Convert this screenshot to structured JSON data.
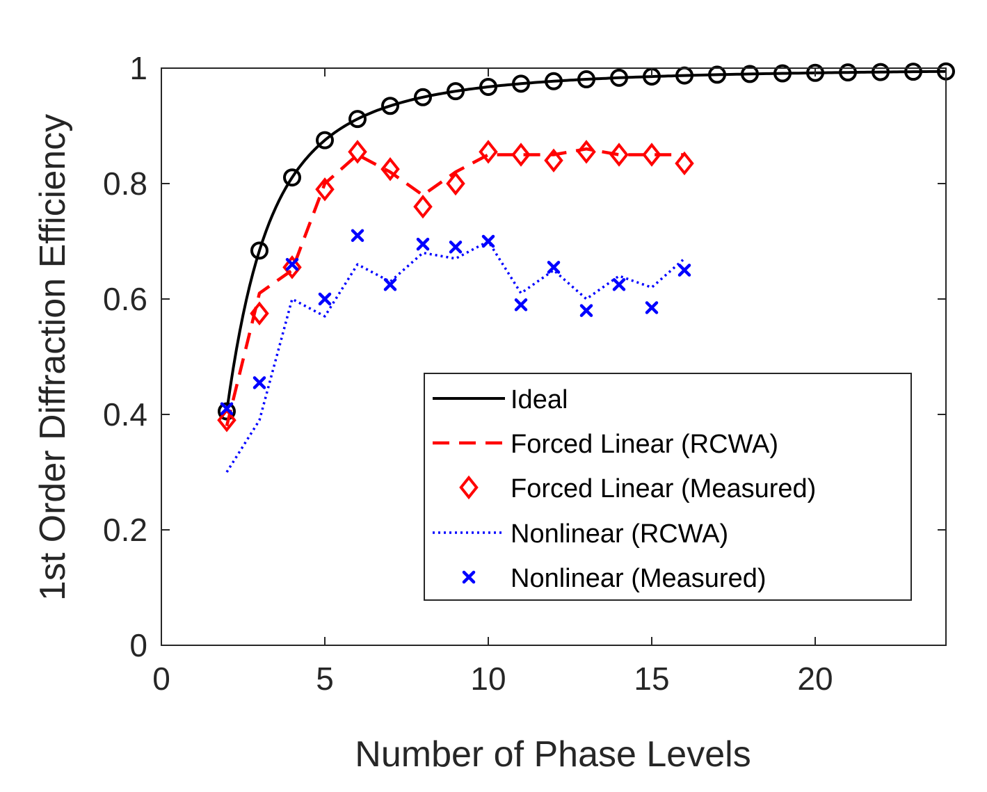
{
  "chart_data": {
    "type": "line",
    "title": "",
    "xlabel": "Number of Phase Levels",
    "ylabel": "1st Order Diffraction Efficiency",
    "xlim": [
      0,
      24
    ],
    "ylim": [
      0,
      1
    ],
    "xticks": [
      0,
      5,
      10,
      15,
      20
    ],
    "yticks": [
      0,
      0.2,
      0.4,
      0.6,
      0.8,
      1
    ],
    "ytick_labels": [
      "0",
      "0.2",
      "0.4",
      "0.6",
      "0.8",
      "1"
    ],
    "legend_position": "lower-right",
    "series": [
      {
        "name": "Ideal",
        "style": "solid-line-with-circles",
        "color": "#000000",
        "x": [
          2,
          3,
          4,
          5,
          6,
          7,
          8,
          9,
          10,
          11,
          12,
          13,
          14,
          15,
          16,
          17,
          18,
          19,
          20,
          21,
          22,
          23,
          24
        ],
        "y": [
          0.405,
          0.684,
          0.811,
          0.875,
          0.912,
          0.933,
          0.95,
          0.96,
          0.968,
          0.973,
          0.977,
          0.981,
          0.983,
          0.985,
          0.987,
          0.989,
          0.99,
          0.991,
          0.992,
          0.993,
          0.994,
          0.994,
          0.994
        ]
      },
      {
        "name": "Forced Linear (RCWA)",
        "style": "dashed",
        "color": "#ff0000",
        "x": [
          2,
          3,
          4,
          5,
          6,
          7,
          8,
          9,
          10,
          11,
          12,
          13,
          14,
          15,
          16
        ],
        "y": [
          0.38,
          0.61,
          0.65,
          0.8,
          0.85,
          0.82,
          0.78,
          0.82,
          0.85,
          0.85,
          0.85,
          0.86,
          0.85,
          0.85,
          0.85
        ]
      },
      {
        "name": "Forced Linear (Measured)",
        "style": "diamond-markers",
        "color": "#ff0000",
        "x": [
          2,
          3,
          4,
          5,
          6,
          7,
          8,
          9,
          10,
          11,
          12,
          13,
          14,
          15,
          16
        ],
        "y": [
          0.39,
          0.575,
          0.655,
          0.79,
          0.855,
          0.825,
          0.76,
          0.8,
          0.855,
          0.85,
          0.84,
          0.855,
          0.85,
          0.85,
          0.835
        ]
      },
      {
        "name": "Nonlinear (RCWA)",
        "style": "dotted",
        "color": "#0000ff",
        "x": [
          2,
          3,
          4,
          5,
          6,
          7,
          8,
          9,
          10,
          11,
          12,
          13,
          14,
          15,
          16
        ],
        "y": [
          0.3,
          0.39,
          0.6,
          0.57,
          0.66,
          0.63,
          0.68,
          0.67,
          0.7,
          0.61,
          0.65,
          0.6,
          0.64,
          0.62,
          0.67
        ]
      },
      {
        "name": "Nonlinear (Measured)",
        "style": "x-markers",
        "color": "#0000ff",
        "x": [
          2,
          3,
          4,
          5,
          6,
          7,
          8,
          9,
          10,
          11,
          12,
          13,
          14,
          15,
          16
        ],
        "y": [
          0.41,
          0.455,
          0.66,
          0.6,
          0.71,
          0.625,
          0.695,
          0.69,
          0.7,
          0.59,
          0.655,
          0.58,
          0.625,
          0.585,
          0.65
        ]
      }
    ]
  }
}
